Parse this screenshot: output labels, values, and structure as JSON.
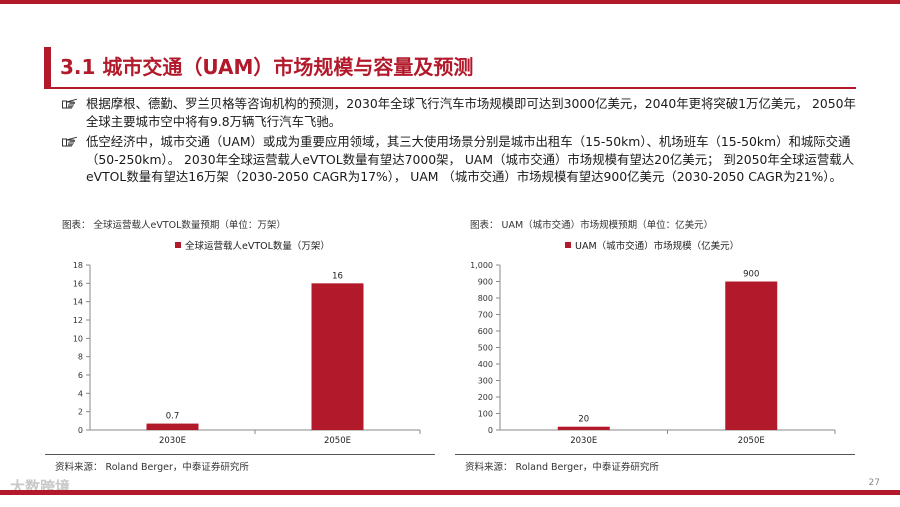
{
  "slide": {
    "title": "3.1 城市交通（UAM）市场规模与容量及预测",
    "page_number": "27",
    "watermark": "大数跨境"
  },
  "bullets": [
    {
      "text": "根据摩根、德勤、罗兰贝格等咨询机构的预测，2030年全球飞行汽车市场规模即可达到3000亿美元，2040年更将突破1万亿美元， 2050年全球主要城市空中将有9.8万辆飞行汽车飞驰。"
    },
    {
      "text": "低空经济中，城市交通（UAM）或成为重要应用领域，其三大使用场景分别是城市出租车（15-50km）、机场班车（15-50km）和城际交通（50-250km）。 2030年全球运营载人eVTOL数量有望达7000架， UAM（城市交通）市场规模有望达20亿美元； 到2050年全球运营载人eVTOL数量有望达16万架（2030-2050 CAGR为17%）， UAM （城市交通）市场规模有望达900亿美元（2030-2050 CAGR为21%）。"
    }
  ],
  "left_figure": {
    "caption": "图表： 全球运营载人eVTOL数量预期（单位：万架）",
    "source": "资料来源： Roland Berger，中泰证券研究所"
  },
  "right_figure": {
    "caption": "图表： UAM（城市交通）市场规模预期（单位：亿美元）",
    "source": "资料来源： Roland Berger，中泰证券研究所"
  },
  "chart_data": [
    {
      "type": "bar",
      "categories": [
        "2030E",
        "2050E"
      ],
      "series": [
        {
          "name": "全球运营载人eVTOL数量（万架）",
          "values": [
            0.7,
            16
          ]
        }
      ],
      "data_labels": [
        "0.7",
        "16"
      ],
      "ylim": [
        0,
        18
      ],
      "yticks": [
        0,
        2,
        4,
        6,
        8,
        10,
        12,
        14,
        16,
        18
      ],
      "ytick_labels": [
        "0",
        "2",
        "4",
        "6",
        "8",
        "10",
        "12",
        "14",
        "16",
        "18"
      ],
      "color": "#b21a2c",
      "legend": "top-center",
      "grid": false
    },
    {
      "type": "bar",
      "categories": [
        "2030E",
        "2050E"
      ],
      "series": [
        {
          "name": "UAM（城市交通）市场规模（亿美元）",
          "values": [
            20,
            900
          ]
        }
      ],
      "data_labels": [
        "20",
        "900"
      ],
      "ylim": [
        0,
        1000
      ],
      "yticks": [
        0,
        100,
        200,
        300,
        400,
        500,
        600,
        700,
        800,
        900,
        1000
      ],
      "ytick_labels": [
        "0",
        "100",
        "200",
        "300",
        "400",
        "500",
        "600",
        "700",
        "800",
        "900",
        "1,000"
      ],
      "color": "#b21a2c",
      "legend": "top-center",
      "grid": false
    }
  ]
}
